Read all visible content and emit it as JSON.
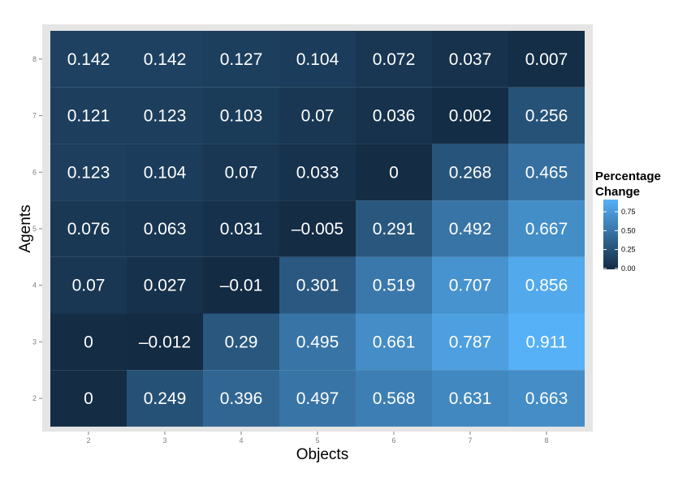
{
  "chart_data": {
    "type": "heatmap",
    "title": "",
    "xlabel": "Objects",
    "ylabel": "Agents",
    "x": [
      2,
      3,
      4,
      5,
      6,
      7,
      8
    ],
    "y": [
      2,
      3,
      4,
      5,
      6,
      7,
      8
    ],
    "cells": [
      {
        "agents": 8,
        "values": [
          0.142,
          0.142,
          0.127,
          0.104,
          0.072,
          0.037,
          0.007
        ]
      },
      {
        "agents": 7,
        "values": [
          0.121,
          0.123,
          0.103,
          0.07,
          0.036,
          0.002,
          0.256
        ]
      },
      {
        "agents": 6,
        "values": [
          0.123,
          0.104,
          0.07,
          0.033,
          0,
          0.268,
          0.465
        ]
      },
      {
        "agents": 5,
        "values": [
          0.076,
          0.063,
          0.031,
          -0.005,
          0.291,
          0.492,
          0.667
        ]
      },
      {
        "agents": 4,
        "values": [
          0.07,
          0.027,
          -0.01,
          0.301,
          0.519,
          0.707,
          0.856
        ]
      },
      {
        "agents": 3,
        "values": [
          0,
          -0.012,
          0.29,
          0.495,
          0.661,
          0.787,
          0.911
        ]
      },
      {
        "agents": 2,
        "values": [
          0,
          0.249,
          0.396,
          0.497,
          0.568,
          0.631,
          0.663
        ]
      }
    ],
    "labels": [
      [
        "0.142",
        "0.142",
        "0.127",
        "0.104",
        "0.072",
        "0.037",
        "0.007"
      ],
      [
        "0.121",
        "0.123",
        "0.103",
        "0.07",
        "0.036",
        "0.002",
        "0.256"
      ],
      [
        "0.123",
        "0.104",
        "0.07",
        "0.033",
        "0",
        "0.268",
        "0.465"
      ],
      [
        "0.076",
        "0.063",
        "0.031",
        "–0.005",
        "0.291",
        "0.492",
        "0.667"
      ],
      [
        "0.07",
        "0.027",
        "–0.01",
        "0.301",
        "0.519",
        "0.707",
        "0.856"
      ],
      [
        "0",
        "–0.012",
        "0.29",
        "0.495",
        "0.661",
        "0.787",
        "0.911"
      ],
      [
        "0",
        "0.249",
        "0.396",
        "0.497",
        "0.568",
        "0.631",
        "0.663"
      ]
    ],
    "legend": {
      "title_line1": "Percentage",
      "title_line2": "Change",
      "ticks": [
        0.0,
        0.25,
        0.5,
        0.75
      ],
      "tick_labels": [
        "0.00",
        "0.25",
        "0.50",
        "0.75"
      ],
      "placement": "right",
      "low_color": "#132B43",
      "high_color": "#56B1F7"
    },
    "color_scale": {
      "min": -0.012,
      "max": 0.911
    },
    "grid": true,
    "panel_background": "#E5E5E5"
  }
}
